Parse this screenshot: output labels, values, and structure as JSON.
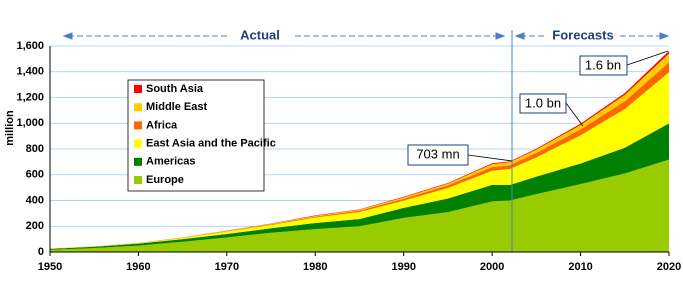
{
  "chart_data": {
    "type": "stacked-area",
    "y_label": "million",
    "x": [
      1950,
      1955,
      1960,
      1965,
      1970,
      1975,
      1980,
      1985,
      1990,
      1995,
      2000,
      2002,
      2005,
      2010,
      2015,
      2020
    ],
    "series": [
      {
        "name": "Europe",
        "color": "#99cc00",
        "values": [
          17,
          30,
          50,
          80,
          113,
          150,
          178,
          200,
          265,
          310,
          393,
          400,
          450,
          527,
          610,
          717
        ]
      },
      {
        "name": "Americas",
        "color": "#008000",
        "values": [
          7,
          11,
          15,
          20,
          27,
          34,
          47,
          56,
          78,
          106,
          128,
          120,
          135,
          160,
          200,
          282
        ]
      },
      {
        "name": "East Asia and the Pacific",
        "color": "#ffff00",
        "values": [
          1,
          3,
          2,
          9,
          18,
          26,
          43,
          55,
          56,
          81,
          110,
          125,
          150,
          220,
          300,
          397
        ]
      },
      {
        "name": "Africa",
        "color": "#ff6600",
        "values": [
          0.5,
          1,
          1,
          2,
          3,
          5,
          7,
          10,
          15,
          20,
          28,
          29,
          35,
          45,
          60,
          77
        ]
      },
      {
        "name": "Middle East",
        "color": "#ffcc00",
        "values": [
          0.2,
          0.5,
          1,
          2,
          3,
          4,
          6,
          7,
          10,
          14,
          24,
          24,
          25,
          35,
          50,
          69
        ]
      },
      {
        "name": "South Asia",
        "color": "#ff0000",
        "values": [
          0.2,
          0.3,
          0.5,
          1,
          2,
          2.5,
          3,
          3,
          5,
          5,
          6,
          6,
          7,
          10,
          14,
          19
        ]
      }
    ],
    "xlim": [
      1950,
      2020
    ],
    "xticks": [
      1950,
      1960,
      1970,
      1980,
      1990,
      2000,
      2010,
      2020
    ],
    "ylim": [
      0,
      1600
    ],
    "yticks": [
      0,
      200,
      400,
      600,
      800,
      {
        "value": 1000,
        "label": "1,000"
      },
      {
        "value": 1200,
        "label": "1,200"
      },
      {
        "value": 1400,
        "label": "1,400"
      },
      {
        "value": 1600,
        "label": "1,600"
      }
    ],
    "grid": true,
    "periods": [
      "Actual",
      "Forecasts"
    ],
    "annotations": [
      "703 mn",
      "1.0 bn",
      "1.6 bn"
    ]
  }
}
